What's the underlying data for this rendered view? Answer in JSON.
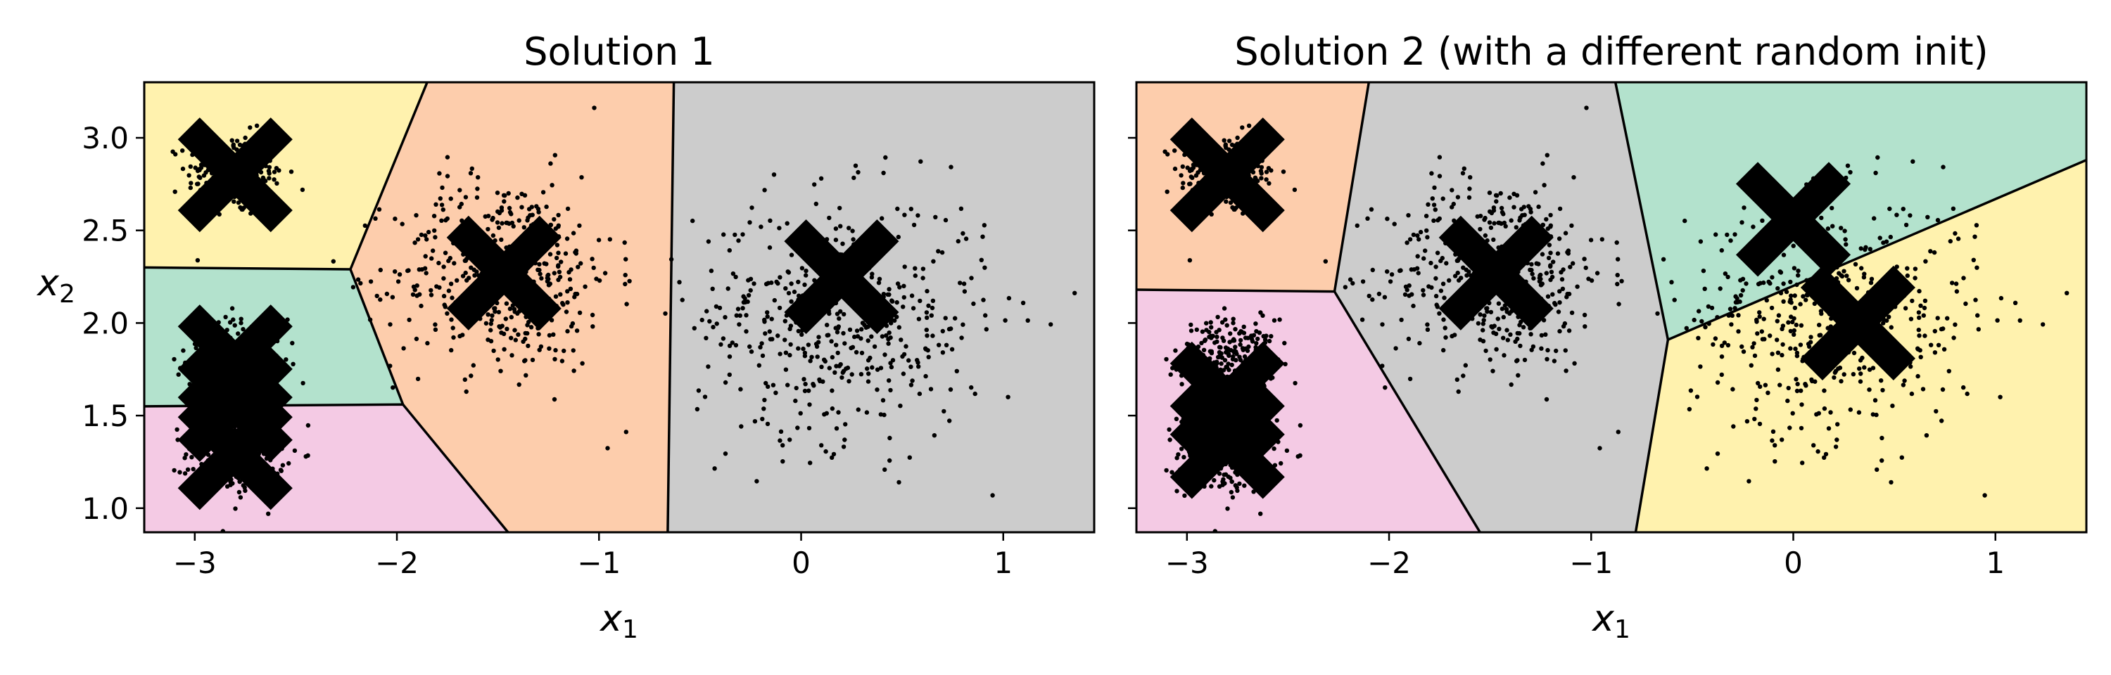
{
  "chart_data": [
    {
      "type": "scatter",
      "title": "Solution 1",
      "xlabel": "x",
      "xlabel_sub": "1",
      "ylabel": "x",
      "ylabel_sub": "2",
      "xlim": [
        -3.25,
        1.45
      ],
      "ylim": [
        0.87,
        3.3
      ],
      "xticks": [
        -3,
        -2,
        -1,
        0,
        1
      ],
      "xtick_labels": [
        "−3",
        "−2",
        "−1",
        "0",
        "1"
      ],
      "yticks": [
        1.0,
        1.5,
        2.0,
        2.5,
        3.0
      ],
      "ytick_labels": [
        "1.0",
        "1.5",
        "2.0",
        "2.5",
        "3.0"
      ],
      "ytick_labels_visible": true,
      "regions": [
        {
          "color": "#fff2ae",
          "polygon": [
            [
              -3.25,
              3.3
            ],
            [
              -1.85,
              3.3
            ],
            [
              -2.23,
              2.29
            ],
            [
              -3.25,
              2.3
            ]
          ]
        },
        {
          "color": "#b3e2cd",
          "polygon": [
            [
              -3.25,
              2.3
            ],
            [
              -2.23,
              2.29
            ],
            [
              -1.97,
              1.56
            ],
            [
              -3.25,
              1.55
            ]
          ]
        },
        {
          "color": "#f4cae4",
          "polygon": [
            [
              -3.25,
              1.55
            ],
            [
              -1.97,
              1.56
            ],
            [
              -1.45,
              0.87
            ],
            [
              -3.25,
              0.87
            ]
          ]
        },
        {
          "color": "#fdcdac",
          "polygon": [
            [
              -1.85,
              3.3
            ],
            [
              -0.63,
              3.3
            ],
            [
              -0.66,
              0.87
            ],
            [
              -1.45,
              0.87
            ],
            [
              -1.97,
              1.56
            ],
            [
              -2.23,
              2.29
            ]
          ]
        },
        {
          "color": "#cccccc",
          "polygon": [
            [
              -0.63,
              3.3
            ],
            [
              1.45,
              3.3
            ],
            [
              1.45,
              0.87
            ],
            [
              -0.66,
              0.87
            ]
          ]
        }
      ],
      "boundaries": [
        [
          [
            -3.25,
            2.3
          ],
          [
            -2.23,
            2.29
          ],
          [
            -1.85,
            3.3
          ]
        ],
        [
          [
            -2.23,
            2.29
          ],
          [
            -1.97,
            1.56
          ]
        ],
        [
          [
            -3.25,
            1.55
          ],
          [
            -1.97,
            1.56
          ],
          [
            -1.45,
            0.87
          ]
        ],
        [
          [
            -0.63,
            3.3
          ],
          [
            -0.66,
            0.87
          ]
        ]
      ],
      "clusters": [
        {
          "center": [
            -2.8,
            2.8
          ],
          "spread": [
            0.12,
            0.11
          ],
          "count": 250
        },
        {
          "center": [
            -2.8,
            1.8
          ],
          "spread": [
            0.12,
            0.11
          ],
          "count": 250
        },
        {
          "center": [
            -2.8,
            1.3
          ],
          "spread": [
            0.12,
            0.11
          ],
          "count": 250
        },
        {
          "center": [
            -1.47,
            2.27
          ],
          "spread": [
            0.27,
            0.26
          ],
          "count": 450
        },
        {
          "center": [
            0.2,
            2.02
          ],
          "spread": [
            0.36,
            0.33
          ],
          "count": 480
        }
      ],
      "centroids": [
        [
          -2.8,
          2.8
        ],
        [
          -2.8,
          1.79
        ],
        [
          -2.8,
          1.56
        ],
        [
          -2.8,
          1.3
        ],
        [
          -1.47,
          2.27
        ],
        [
          0.2,
          2.25
        ]
      ]
    },
    {
      "type": "scatter",
      "title": "Solution 2 (with a different random init)",
      "xlabel": "x",
      "xlabel_sub": "1",
      "ylabel": "",
      "ylabel_sub": "",
      "xlim": [
        -3.25,
        1.45
      ],
      "ylim": [
        0.87,
        3.3
      ],
      "xticks": [
        -3,
        -2,
        -1,
        0,
        1
      ],
      "xtick_labels": [
        "−3",
        "−2",
        "−1",
        "0",
        "1"
      ],
      "yticks": [
        1.0,
        1.5,
        2.0,
        2.5,
        3.0
      ],
      "ytick_labels": [
        "1.0",
        "1.5",
        "2.0",
        "2.5",
        "3.0"
      ],
      "ytick_labels_visible": false,
      "regions": [
        {
          "color": "#fdcdac",
          "polygon": [
            [
              -3.25,
              3.3
            ],
            [
              -2.1,
              3.3
            ],
            [
              -2.27,
              2.17
            ],
            [
              -3.25,
              2.18
            ]
          ]
        },
        {
          "color": "#f4cae4",
          "polygon": [
            [
              -3.25,
              2.18
            ],
            [
              -2.27,
              2.17
            ],
            [
              -1.55,
              0.87
            ],
            [
              -3.25,
              0.87
            ]
          ]
        },
        {
          "color": "#cccccc",
          "polygon": [
            [
              -2.1,
              3.3
            ],
            [
              -0.88,
              3.3
            ],
            [
              -0.62,
              1.91
            ],
            [
              -0.78,
              0.87
            ],
            [
              -1.55,
              0.87
            ],
            [
              -2.27,
              2.17
            ]
          ]
        },
        {
          "color": "#b3e2cd",
          "polygon": [
            [
              -0.88,
              3.3
            ],
            [
              1.45,
              3.3
            ],
            [
              1.45,
              2.88
            ],
            [
              -0.62,
              1.91
            ]
          ]
        },
        {
          "color": "#fff2ae",
          "polygon": [
            [
              -0.62,
              1.91
            ],
            [
              1.45,
              2.88
            ],
            [
              1.45,
              0.87
            ],
            [
              -0.78,
              0.87
            ]
          ]
        }
      ],
      "boundaries": [
        [
          [
            -3.25,
            2.18
          ],
          [
            -2.27,
            2.17
          ],
          [
            -2.1,
            3.3
          ]
        ],
        [
          [
            -2.27,
            2.17
          ],
          [
            -1.55,
            0.87
          ]
        ],
        [
          [
            -0.88,
            3.3
          ],
          [
            -0.62,
            1.91
          ],
          [
            -0.78,
            0.87
          ]
        ],
        [
          [
            -0.62,
            1.91
          ],
          [
            1.45,
            2.88
          ]
        ]
      ],
      "clusters": [
        {
          "center": [
            -2.8,
            2.8
          ],
          "spread": [
            0.12,
            0.11
          ],
          "count": 250
        },
        {
          "center": [
            -2.8,
            1.8
          ],
          "spread": [
            0.12,
            0.11
          ],
          "count": 250
        },
        {
          "center": [
            -2.8,
            1.3
          ],
          "spread": [
            0.12,
            0.11
          ],
          "count": 250
        },
        {
          "center": [
            -1.47,
            2.27
          ],
          "spread": [
            0.27,
            0.26
          ],
          "count": 450
        },
        {
          "center": [
            0.2,
            2.02
          ],
          "spread": [
            0.36,
            0.33
          ],
          "count": 480
        }
      ],
      "centroids": [
        [
          -2.8,
          2.8
        ],
        [
          -2.8,
          1.59
        ],
        [
          -2.8,
          1.36
        ],
        [
          -1.47,
          2.27
        ],
        [
          0.0,
          2.56
        ],
        [
          0.32,
          2.0
        ]
      ]
    }
  ]
}
